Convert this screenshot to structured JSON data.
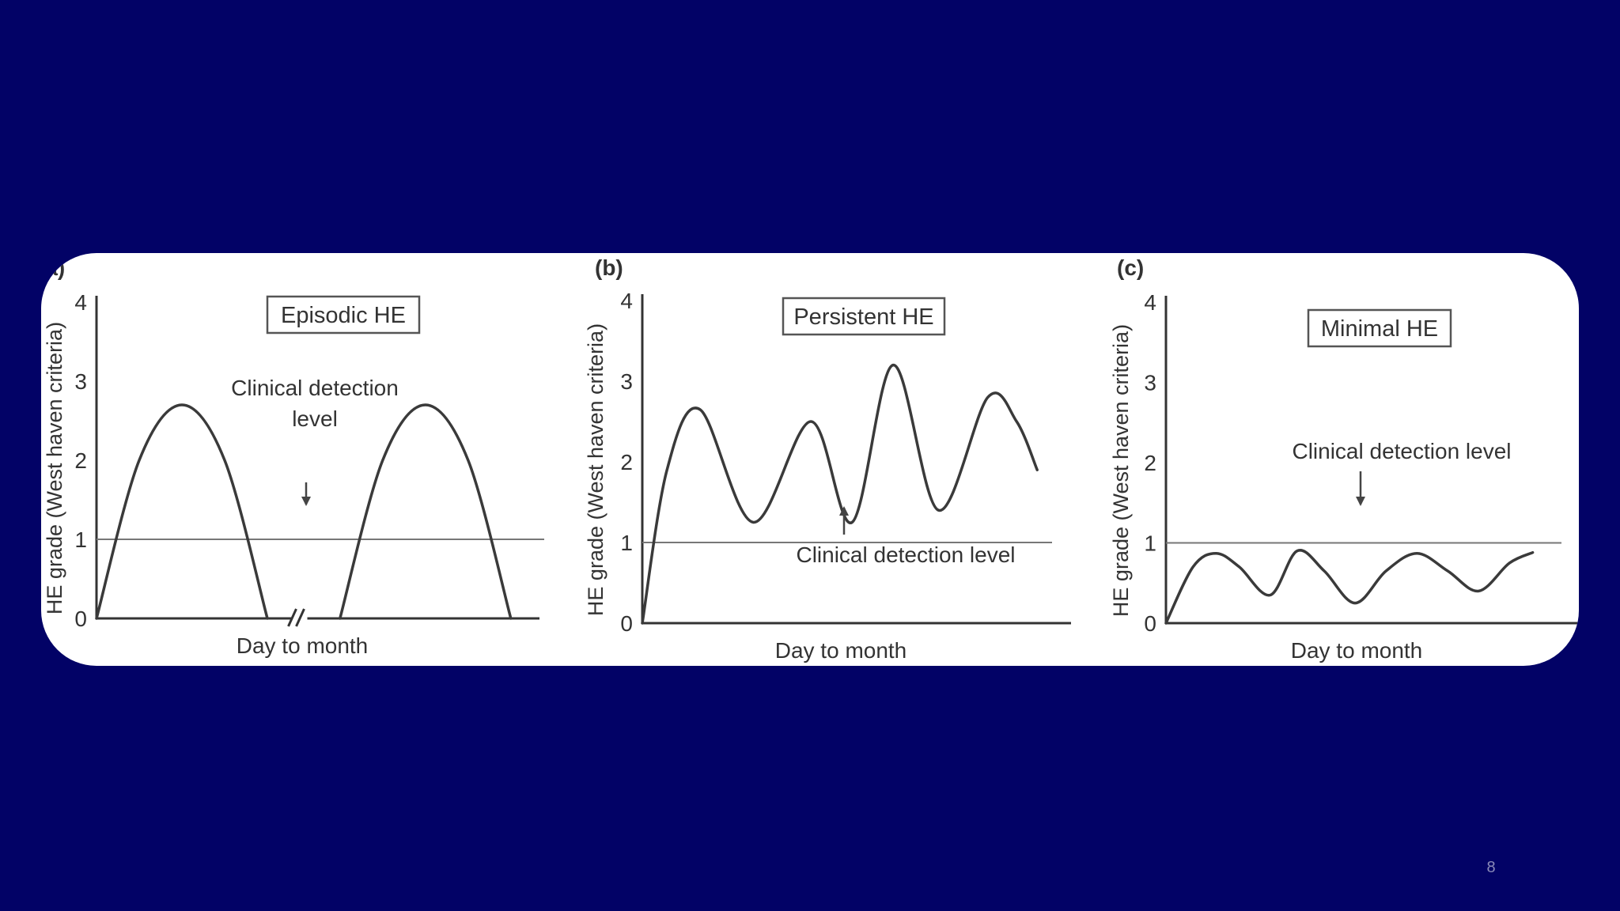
{
  "slide": {
    "page_number": "8"
  },
  "colors": {
    "background": "#020266",
    "card": "#ffffff",
    "ink": "#333333"
  },
  "chart_data": [
    {
      "type": "line",
      "panel_label": "(a)",
      "title": "Episodic HE",
      "xlabel": "Day to month",
      "ylabel": "HE grade (West haven criteria)",
      "yticks": [
        "0",
        "1",
        "2",
        "3",
        "4"
      ],
      "ylim": [
        0,
        4
      ],
      "xlim": [
        0,
        100
      ],
      "x_axis_break": true,
      "detection_level": 1,
      "annotation": [
        "Clinical detection",
        "level"
      ],
      "series": [
        {
          "x": [
            0,
            10,
            20,
            30,
            40
          ],
          "y": [
            0,
            2.0,
            2.7,
            2.0,
            0
          ]
        },
        {
          "x": [
            57,
            67,
            77,
            87,
            97
          ],
          "y": [
            0,
            2.0,
            2.7,
            2.0,
            0
          ]
        }
      ]
    },
    {
      "type": "line",
      "panel_label": "(b)",
      "title": "Persistent HE",
      "xlabel": "Day to month",
      "ylabel": "HE grade (West haven criteria)",
      "yticks": [
        "0",
        "1",
        "2",
        "3",
        "4"
      ],
      "ylim": [
        0,
        4
      ],
      "xlim": [
        0,
        100
      ],
      "detection_level": 1,
      "annotation": [
        "Clinical detection level"
      ],
      "series": [
        {
          "x": [
            0,
            6,
            14,
            27,
            41,
            51,
            61,
            72,
            84,
            91,
            96
          ],
          "y": [
            0,
            1.9,
            2.65,
            1.25,
            2.5,
            1.25,
            3.2,
            1.4,
            2.8,
            2.5,
            1.9
          ]
        }
      ]
    },
    {
      "type": "line",
      "panel_label": "(c)",
      "title": "Minimal HE",
      "xlabel": "Day to month",
      "ylabel": "HE grade (West haven criteria)",
      "yticks": [
        "0",
        "1",
        "2",
        "3",
        "4"
      ],
      "ylim": [
        0,
        4
      ],
      "xlim": [
        0,
        100
      ],
      "detection_level": 1,
      "annotation": [
        "Clinical detection level"
      ],
      "series": [
        {
          "x": [
            0,
            7,
            13,
            19,
            27,
            34,
            41,
            49,
            57,
            65,
            73,
            81,
            89,
            95
          ],
          "y": [
            0,
            0.7,
            0.87,
            0.7,
            0.35,
            0.9,
            0.65,
            0.25,
            0.65,
            0.87,
            0.65,
            0.4,
            0.75,
            0.88
          ]
        }
      ]
    }
  ]
}
